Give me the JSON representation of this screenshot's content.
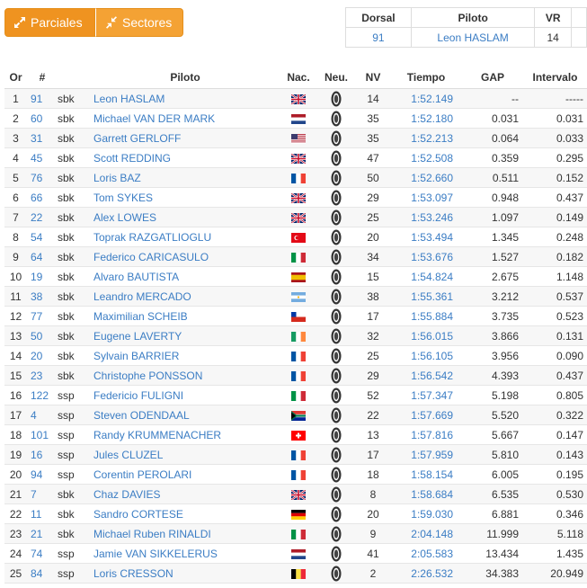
{
  "buttons": {
    "parciales": "Parciales",
    "sectores": "Sectores"
  },
  "current": {
    "headers": {
      "dorsal": "Dorsal",
      "piloto": "Piloto",
      "vr": "VR"
    },
    "dorsal": "91",
    "piloto": "Leon HASLAM",
    "vr": "14"
  },
  "table": {
    "headers": {
      "or": "Or",
      "num": "#",
      "piloto": "Piloto",
      "nac": "Nac.",
      "neu": "Neu.",
      "nv": "NV",
      "tiempo": "Tiempo",
      "gap": "GAP",
      "intervalo": "Intervalo"
    },
    "rows": [
      {
        "or": "1",
        "num": "91",
        "cat": "sbk",
        "name": "Leon HASLAM",
        "flag": "gb",
        "nv": "14",
        "time": "1:52.149",
        "gap": "--",
        "int": "-----"
      },
      {
        "or": "2",
        "num": "60",
        "cat": "sbk",
        "name": "Michael VAN DER MARK",
        "flag": "nl",
        "nv": "35",
        "time": "1:52.180",
        "gap": "0.031",
        "int": "0.031"
      },
      {
        "or": "3",
        "num": "31",
        "cat": "sbk",
        "name": "Garrett GERLOFF",
        "flag": "us",
        "nv": "35",
        "time": "1:52.213",
        "gap": "0.064",
        "int": "0.033"
      },
      {
        "or": "4",
        "num": "45",
        "cat": "sbk",
        "name": "Scott REDDING",
        "flag": "gb",
        "nv": "47",
        "time": "1:52.508",
        "gap": "0.359",
        "int": "0.295"
      },
      {
        "or": "5",
        "num": "76",
        "cat": "sbk",
        "name": "Loris BAZ",
        "flag": "fr",
        "nv": "50",
        "time": "1:52.660",
        "gap": "0.511",
        "int": "0.152"
      },
      {
        "or": "6",
        "num": "66",
        "cat": "sbk",
        "name": "Tom SYKES",
        "flag": "gb",
        "nv": "29",
        "time": "1:53.097",
        "gap": "0.948",
        "int": "0.437"
      },
      {
        "or": "7",
        "num": "22",
        "cat": "sbk",
        "name": "Alex LOWES",
        "flag": "gb",
        "nv": "25",
        "time": "1:53.246",
        "gap": "1.097",
        "int": "0.149"
      },
      {
        "or": "8",
        "num": "54",
        "cat": "sbk",
        "name": "Toprak RAZGATLIOGLU",
        "flag": "tr",
        "nv": "20",
        "time": "1:53.494",
        "gap": "1.345",
        "int": "0.248"
      },
      {
        "or": "9",
        "num": "64",
        "cat": "sbk",
        "name": "Federico CARICASULO",
        "flag": "it",
        "nv": "34",
        "time": "1:53.676",
        "gap": "1.527",
        "int": "0.182"
      },
      {
        "or": "10",
        "num": "19",
        "cat": "sbk",
        "name": "Alvaro BAUTISTA",
        "flag": "es",
        "nv": "15",
        "time": "1:54.824",
        "gap": "2.675",
        "int": "1.148"
      },
      {
        "or": "11",
        "num": "38",
        "cat": "sbk",
        "name": "Leandro MERCADO",
        "flag": "ar",
        "nv": "38",
        "time": "1:55.361",
        "gap": "3.212",
        "int": "0.537"
      },
      {
        "or": "12",
        "num": "77",
        "cat": "sbk",
        "name": "Maximilian SCHEIB",
        "flag": "cl",
        "nv": "17",
        "time": "1:55.884",
        "gap": "3.735",
        "int": "0.523"
      },
      {
        "or": "13",
        "num": "50",
        "cat": "sbk",
        "name": "Eugene LAVERTY",
        "flag": "ie",
        "nv": "32",
        "time": "1:56.015",
        "gap": "3.866",
        "int": "0.131"
      },
      {
        "or": "14",
        "num": "20",
        "cat": "sbk",
        "name": "Sylvain BARRIER",
        "flag": "fr",
        "nv": "25",
        "time": "1:56.105",
        "gap": "3.956",
        "int": "0.090"
      },
      {
        "or": "15",
        "num": "23",
        "cat": "sbk",
        "name": "Christophe PONSSON",
        "flag": "fr",
        "nv": "29",
        "time": "1:56.542",
        "gap": "4.393",
        "int": "0.437"
      },
      {
        "or": "16",
        "num": "122",
        "cat": "ssp",
        "name": "Federicio FULIGNI",
        "flag": "it",
        "nv": "52",
        "time": "1:57.347",
        "gap": "5.198",
        "int": "0.805"
      },
      {
        "or": "17",
        "num": "4",
        "cat": "ssp",
        "name": "Steven ODENDAAL",
        "flag": "za",
        "nv": "22",
        "time": "1:57.669",
        "gap": "5.520",
        "int": "0.322"
      },
      {
        "or": "18",
        "num": "101",
        "cat": "ssp",
        "name": "Randy KRUMMENACHER",
        "flag": "ch",
        "nv": "13",
        "time": "1:57.816",
        "gap": "5.667",
        "int": "0.147"
      },
      {
        "or": "19",
        "num": "16",
        "cat": "ssp",
        "name": "Jules CLUZEL",
        "flag": "fr",
        "nv": "17",
        "time": "1:57.959",
        "gap": "5.810",
        "int": "0.143"
      },
      {
        "or": "20",
        "num": "94",
        "cat": "ssp",
        "name": "Corentin PEROLARI",
        "flag": "fr",
        "nv": "18",
        "time": "1:58.154",
        "gap": "6.005",
        "int": "0.195"
      },
      {
        "or": "21",
        "num": "7",
        "cat": "sbk",
        "name": "Chaz DAVIES",
        "flag": "gb",
        "nv": "8",
        "time": "1:58.684",
        "gap": "6.535",
        "int": "0.530"
      },
      {
        "or": "22",
        "num": "11",
        "cat": "sbk",
        "name": "Sandro CORTESE",
        "flag": "de",
        "nv": "20",
        "time": "1:59.030",
        "gap": "6.881",
        "int": "0.346"
      },
      {
        "or": "23",
        "num": "21",
        "cat": "sbk",
        "name": "Michael Ruben RINALDI",
        "flag": "it",
        "nv": "9",
        "time": "2:04.148",
        "gap": "11.999",
        "int": "5.118"
      },
      {
        "or": "24",
        "num": "74",
        "cat": "ssp",
        "name": "Jamie VAN SIKKELERUS",
        "flag": "nl",
        "nv": "41",
        "time": "2:05.583",
        "gap": "13.434",
        "int": "1.435"
      },
      {
        "or": "25",
        "num": "84",
        "cat": "ssp",
        "name": "Loris CRESSON",
        "flag": "be",
        "nv": "2",
        "time": "2:26.532",
        "gap": "34.383",
        "int": "20.949"
      }
    ]
  },
  "colors": {
    "accent": "#f4a234",
    "link": "#3b7dc4"
  }
}
